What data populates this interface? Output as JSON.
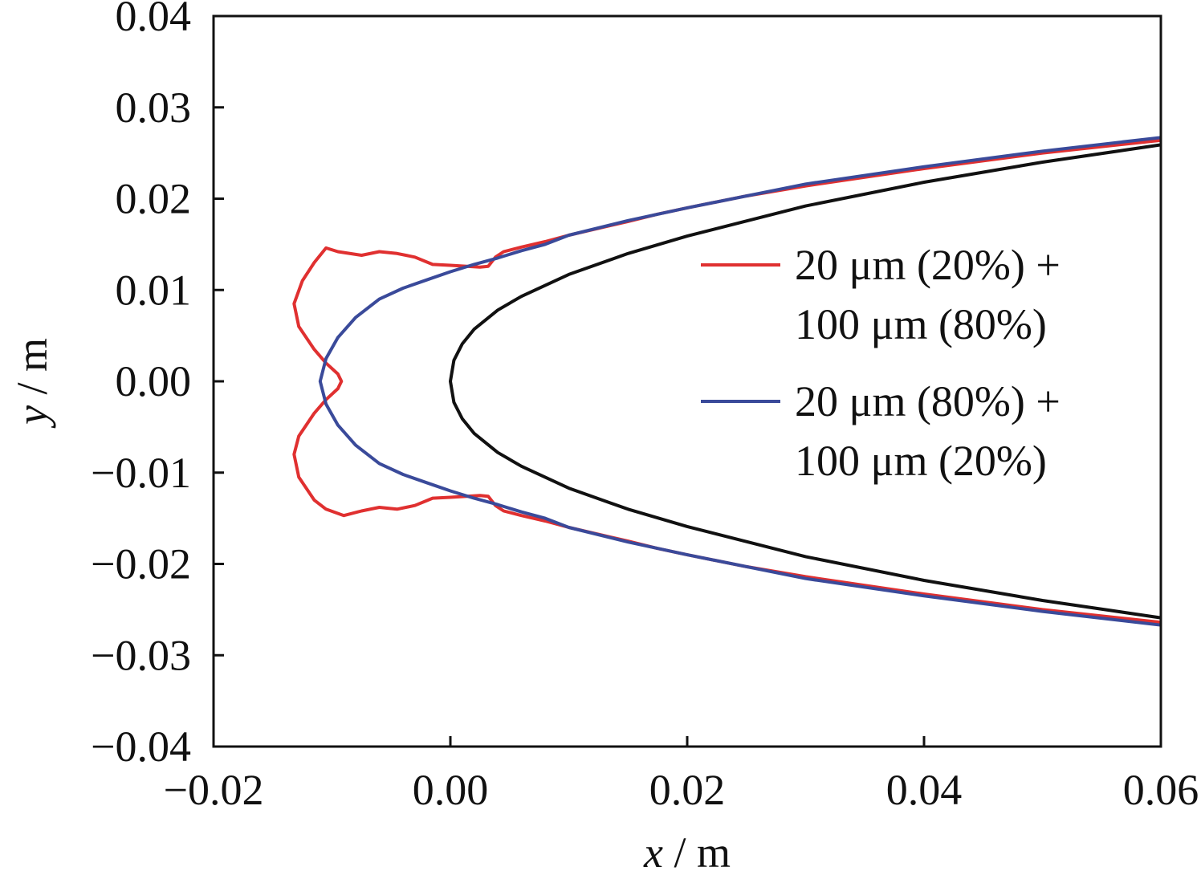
{
  "chart_data": {
    "type": "line",
    "title": "",
    "xlabel": {
      "var": "x",
      "unit": " / m"
    },
    "ylabel": {
      "var": "y",
      "unit": " / m"
    },
    "xlim": [
      -0.02,
      0.06
    ],
    "ylim": [
      -0.04,
      0.04
    ],
    "xticks": [
      -0.02,
      0.0,
      0.02,
      0.04,
      0.06
    ],
    "yticks": [
      -0.04,
      -0.03,
      -0.02,
      -0.01,
      0.0,
      0.01,
      0.02,
      0.03,
      0.04
    ],
    "xtick_labels": [
      "−0.02",
      "0.00",
      "0.02",
      "0.04",
      "0.06"
    ],
    "ytick_labels": [
      "−0.04",
      "−0.03",
      "−0.02",
      "−0.01",
      "0.00",
      "0.01",
      "0.02",
      "0.03",
      "0.04"
    ],
    "grid": false,
    "legend_position": "right",
    "series": [
      {
        "name": "20 μm (20%) + 100 μm (80%)",
        "label_lines": [
          "20 μm (20%) +",
          "100 μm (80%)"
        ],
        "color": "#e03030",
        "points": [
          [
            0.06,
            0.0264
          ],
          [
            0.05,
            0.025
          ],
          [
            0.04,
            0.0233
          ],
          [
            0.03,
            0.0214
          ],
          [
            0.025,
            0.0203
          ],
          [
            0.02,
            0.019
          ],
          [
            0.0175,
            0.0183
          ],
          [
            0.015,
            0.0175
          ],
          [
            0.01,
            0.016
          ],
          [
            0.008,
            0.0153
          ],
          [
            0.006,
            0.0147
          ],
          [
            0.0045,
            0.0142
          ],
          [
            0.0038,
            0.0136
          ],
          [
            0.0032,
            0.0126
          ],
          [
            0.0025,
            0.0125
          ],
          [
            0.0,
            0.0127
          ],
          [
            -0.0015,
            0.0128
          ],
          [
            -0.003,
            0.0136
          ],
          [
            -0.0045,
            0.014
          ],
          [
            -0.006,
            0.0142
          ],
          [
            -0.0075,
            0.0138
          ],
          [
            -0.0095,
            0.0142
          ],
          [
            -0.0105,
            0.0146
          ],
          [
            -0.0115,
            0.013
          ],
          [
            -0.0125,
            0.011
          ],
          [
            -0.0132,
            0.0085
          ],
          [
            -0.0128,
            0.006
          ],
          [
            -0.0115,
            0.0035
          ],
          [
            -0.0105,
            0.002
          ],
          [
            -0.0095,
            0.0008
          ],
          [
            -0.0092,
            0.0
          ],
          [
            -0.0095,
            -0.0008
          ],
          [
            -0.0105,
            -0.002
          ],
          [
            -0.0115,
            -0.0035
          ],
          [
            -0.0128,
            -0.006
          ],
          [
            -0.0132,
            -0.008
          ],
          [
            -0.0128,
            -0.0105
          ],
          [
            -0.0115,
            -0.013
          ],
          [
            -0.0105,
            -0.014
          ],
          [
            -0.009,
            -0.0147
          ],
          [
            -0.0075,
            -0.0142
          ],
          [
            -0.006,
            -0.0138
          ],
          [
            -0.0045,
            -0.014
          ],
          [
            -0.003,
            -0.0136
          ],
          [
            -0.0015,
            -0.0128
          ],
          [
            0.0,
            -0.0127
          ],
          [
            0.0025,
            -0.0125
          ],
          [
            0.0032,
            -0.0126
          ],
          [
            0.0038,
            -0.0136
          ],
          [
            0.0045,
            -0.0142
          ],
          [
            0.006,
            -0.0147
          ],
          [
            0.008,
            -0.0153
          ],
          [
            0.01,
            -0.016
          ],
          [
            0.015,
            -0.0175
          ],
          [
            0.0175,
            -0.0183
          ],
          [
            0.02,
            -0.019
          ],
          [
            0.025,
            -0.0203
          ],
          [
            0.03,
            -0.0214
          ],
          [
            0.04,
            -0.0233
          ],
          [
            0.05,
            -0.025
          ],
          [
            0.06,
            -0.0264
          ]
        ]
      },
      {
        "name": "20 μm (80%) + 100 μm (20%)",
        "label_lines": [
          "20 μm (80%) +",
          "100 μm (20%)"
        ],
        "color": "#3a4a9a",
        "points": [
          [
            0.06,
            0.0267
          ],
          [
            0.05,
            0.0252
          ],
          [
            0.04,
            0.0235
          ],
          [
            0.03,
            0.0216
          ],
          [
            0.02,
            0.019
          ],
          [
            0.015,
            0.0176
          ],
          [
            0.01,
            0.016
          ],
          [
            0.008,
            0.015
          ],
          [
            0.006,
            0.0143
          ],
          [
            0.004,
            0.0135
          ],
          [
            0.002,
            0.0128
          ],
          [
            0.0,
            0.012
          ],
          [
            -0.002,
            0.0111
          ],
          [
            -0.004,
            0.0102
          ],
          [
            -0.006,
            0.009
          ],
          [
            -0.008,
            0.007
          ],
          [
            -0.0095,
            0.0048
          ],
          [
            -0.0105,
            0.0025
          ],
          [
            -0.011,
            0.0
          ],
          [
            -0.0105,
            -0.0025
          ],
          [
            -0.0095,
            -0.0048
          ],
          [
            -0.008,
            -0.007
          ],
          [
            -0.006,
            -0.009
          ],
          [
            -0.004,
            -0.0102
          ],
          [
            -0.002,
            -0.0111
          ],
          [
            0.0,
            -0.012
          ],
          [
            0.002,
            -0.0128
          ],
          [
            0.004,
            -0.0135
          ],
          [
            0.006,
            -0.0143
          ],
          [
            0.008,
            -0.015
          ],
          [
            0.01,
            -0.016
          ],
          [
            0.015,
            -0.0176
          ],
          [
            0.02,
            -0.019
          ],
          [
            0.03,
            -0.0216
          ],
          [
            0.04,
            -0.0235
          ],
          [
            0.05,
            -0.0252
          ],
          [
            0.06,
            -0.0267
          ]
        ]
      },
      {
        "color": "#111111",
        "points": [
          [
            0.06,
            0.0259
          ],
          [
            0.05,
            0.024
          ],
          [
            0.04,
            0.0218
          ],
          [
            0.03,
            0.0192
          ],
          [
            0.02,
            0.0159
          ],
          [
            0.015,
            0.014
          ],
          [
            0.01,
            0.0117
          ],
          [
            0.006,
            0.0093
          ],
          [
            0.004,
            0.0078
          ],
          [
            0.002,
            0.0057
          ],
          [
            0.001,
            0.0041
          ],
          [
            0.0003,
            0.0023
          ],
          [
            0.0,
            0.0
          ],
          [
            0.0003,
            -0.0023
          ],
          [
            0.001,
            -0.0041
          ],
          [
            0.002,
            -0.0057
          ],
          [
            0.004,
            -0.0078
          ],
          [
            0.006,
            -0.0093
          ],
          [
            0.01,
            -0.0117
          ],
          [
            0.015,
            -0.014
          ],
          [
            0.02,
            -0.0159
          ],
          [
            0.03,
            -0.0192
          ],
          [
            0.04,
            -0.0218
          ],
          [
            0.05,
            -0.024
          ],
          [
            0.06,
            -0.0259
          ]
        ]
      }
    ]
  }
}
